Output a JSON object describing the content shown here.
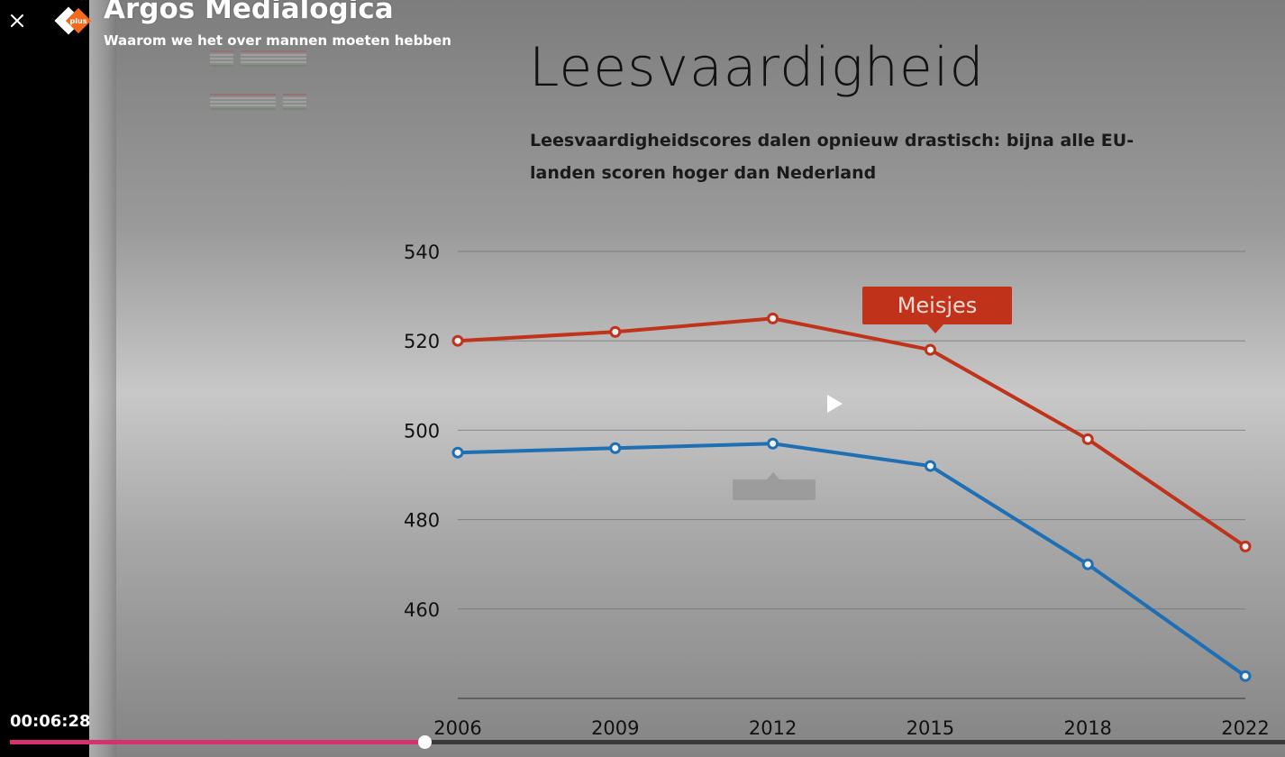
{
  "header": {
    "show_title": "Argos Medialogica",
    "episode_title": "Waarom we het over mannen moeten hebben",
    "logo_icon": "npo-plus-logo",
    "logo_text": "plus",
    "close_icon": "close-icon"
  },
  "slide": {
    "title": "Leesvaardigheid",
    "subtitle": "Leesvaardigheidscores dalen opnieuw drastisch: bijna alle EU-landen scoren hoger dan Nederland"
  },
  "chart_data": {
    "type": "line",
    "x": [
      "2006",
      "2009",
      "2012",
      "2015",
      "2018",
      "2022"
    ],
    "ylim": [
      440,
      540
    ],
    "yticks": [
      460,
      480,
      500,
      520,
      540
    ],
    "grid": true,
    "series": [
      {
        "name": "Meisjes",
        "color": "#c0321a",
        "values": [
          520,
          522,
          525,
          518,
          498,
          474
        ]
      },
      {
        "name": "",
        "color": "#1f6fb5",
        "values": [
          495,
          496,
          497,
          492,
          470,
          445
        ]
      }
    ]
  },
  "player": {
    "current_time": "00:06:28",
    "progress": 0.325,
    "play_icon": "play-icon"
  }
}
